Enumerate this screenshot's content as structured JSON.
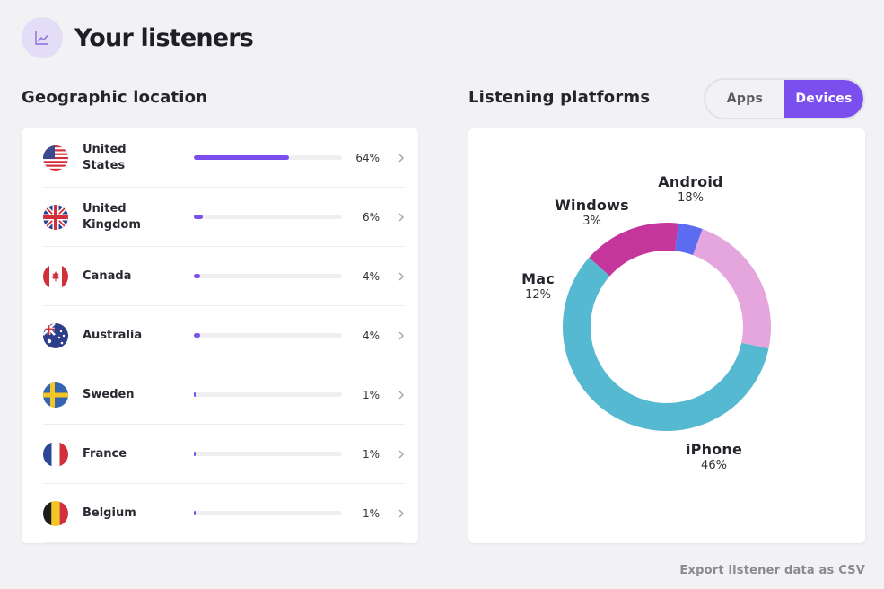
{
  "header": {
    "title": "Your listeners",
    "icon": "trend-chart-icon"
  },
  "geo": {
    "title": "Geographic location",
    "rows": [
      {
        "country": "United States",
        "percent": "64%",
        "value": 64,
        "flag": "us"
      },
      {
        "country": "United Kingdom",
        "percent": "6%",
        "value": 6,
        "flag": "gb"
      },
      {
        "country": "Canada",
        "percent": "4%",
        "value": 4,
        "flag": "ca"
      },
      {
        "country": "Australia",
        "percent": "4%",
        "value": 4,
        "flag": "au"
      },
      {
        "country": "Sweden",
        "percent": "1%",
        "value": 1,
        "flag": "se"
      },
      {
        "country": "France",
        "percent": "1%",
        "value": 1,
        "flag": "fr"
      },
      {
        "country": "Belgium",
        "percent": "1%",
        "value": 1,
        "flag": "be"
      }
    ]
  },
  "platforms": {
    "title": "Listening platforms",
    "toggle": {
      "apps_label": "Apps",
      "devices_label": "Devices",
      "selected": "Devices"
    },
    "slices": [
      {
        "name": "Android",
        "percent": "18%",
        "value": 18,
        "color": "#e4a6dc"
      },
      {
        "name": "iPhone",
        "percent": "46%",
        "value": 46,
        "color": "#56b9d2"
      },
      {
        "name": "Mac",
        "percent": "12%",
        "value": 12,
        "color": "#c5369c"
      },
      {
        "name": "Windows",
        "percent": "3%",
        "value": 3,
        "color": "#5b6cf0"
      }
    ]
  },
  "export_label": "Export listener data as CSV",
  "colors": {
    "accent": "#7b4fee",
    "background": "#f2f2f4"
  }
}
